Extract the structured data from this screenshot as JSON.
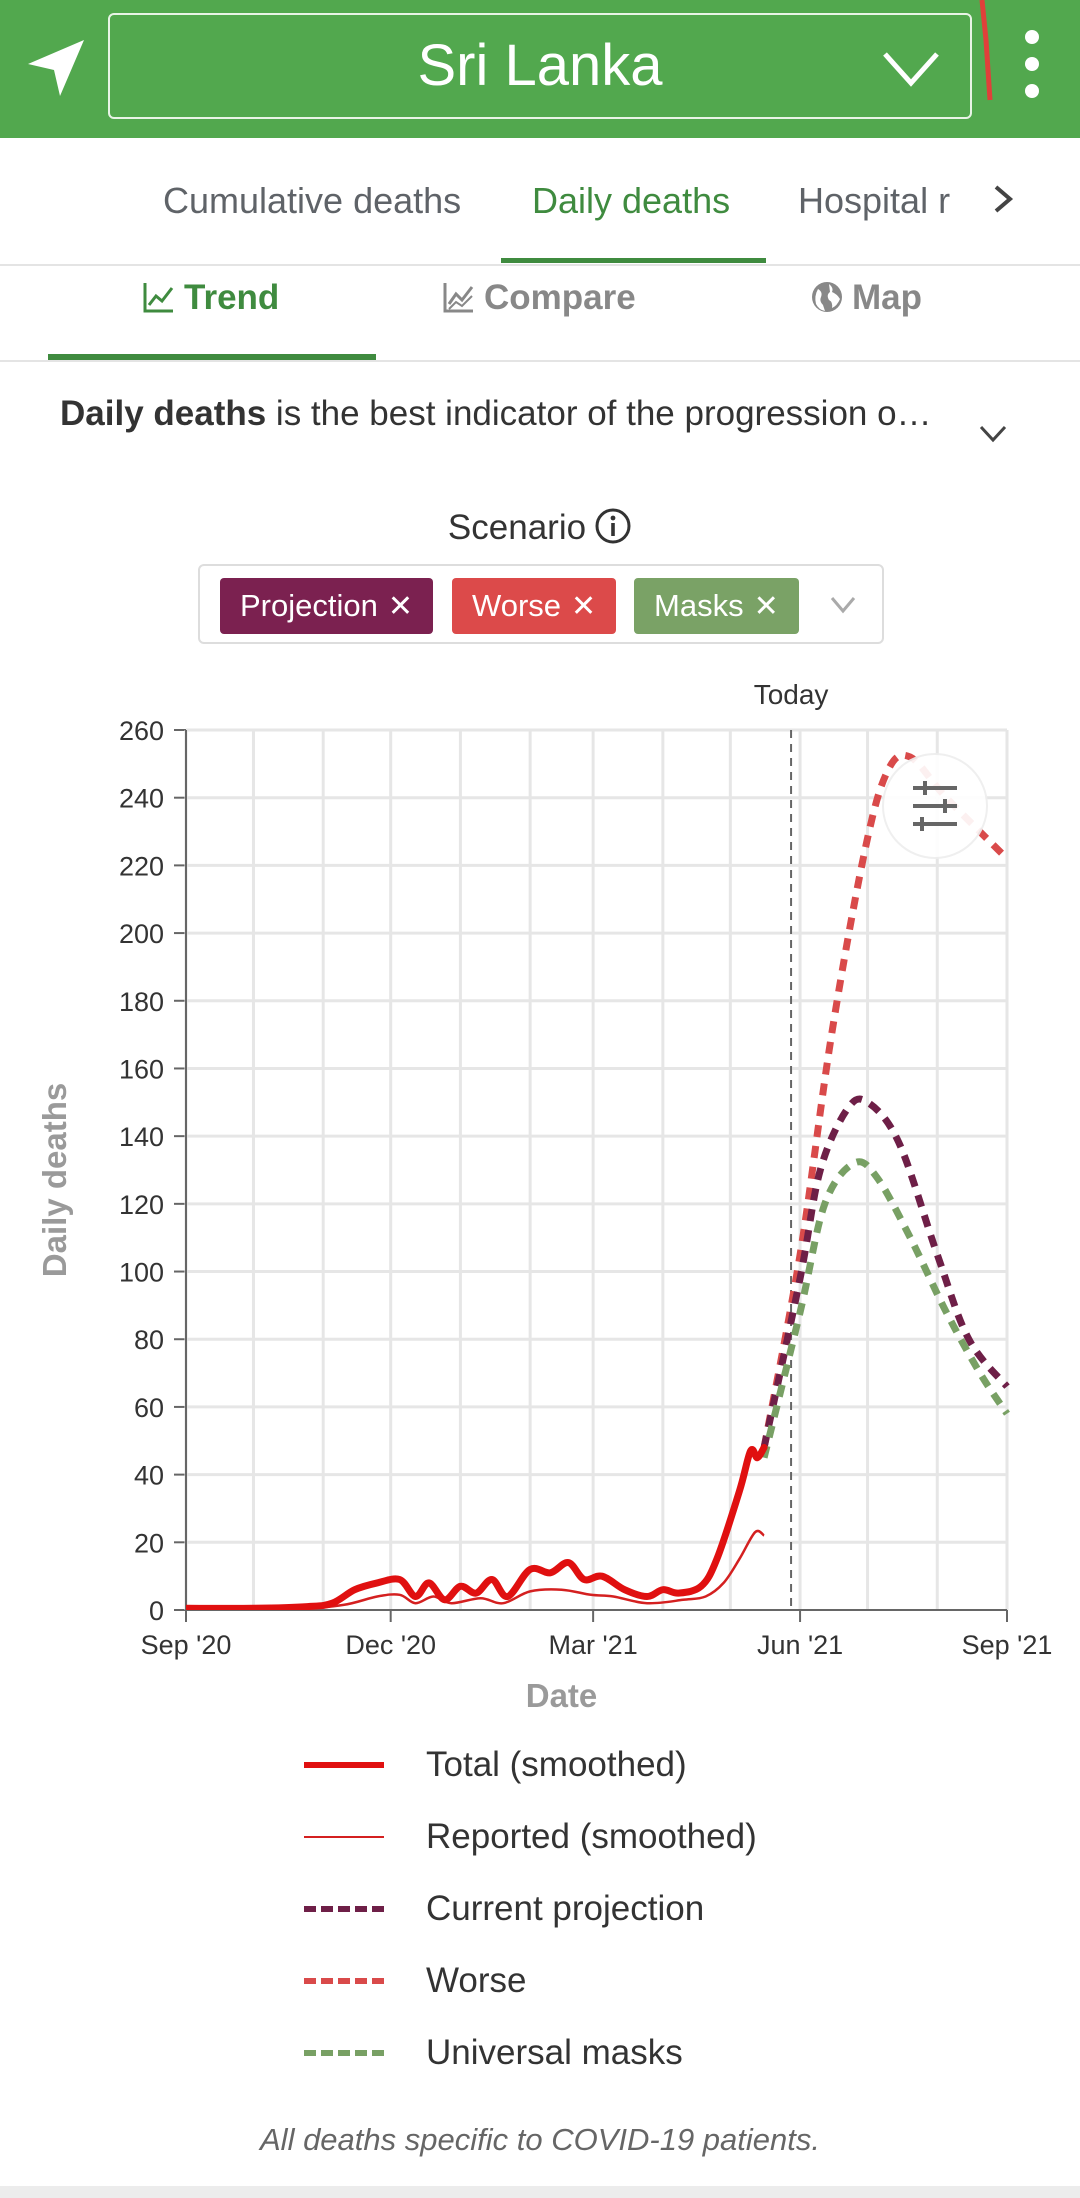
{
  "header": {
    "location": "Sri Lanka",
    "nav_icon": "navigation-arrow-icon",
    "menu_icon": "kebab-menu-icon",
    "dropdown_icon": "chevron-down-icon",
    "accent": "#52a84e"
  },
  "tabs": [
    {
      "label": "Cumulative deaths",
      "active": false
    },
    {
      "label": "Daily deaths",
      "active": true
    },
    {
      "label": "Hospital r",
      "active": false
    }
  ],
  "subtabs": [
    {
      "label": "Trend",
      "icon": "line-chart-icon",
      "active": true
    },
    {
      "label": "Compare",
      "icon": "compare-chart-icon",
      "active": false
    },
    {
      "label": "Map",
      "icon": "globe-icon",
      "active": false
    }
  ],
  "description": {
    "bold": "Daily deaths",
    "rest": " is the best indicator of the progression o…"
  },
  "scenario": {
    "label": "Scenario",
    "chips": [
      {
        "label": "Projection",
        "color": "#7b2150"
      },
      {
        "label": "Worse",
        "color": "#dc4a4a"
      },
      {
        "label": "Masks",
        "color": "#7aa266"
      }
    ]
  },
  "chart_data": {
    "type": "line",
    "today_label": "Today",
    "xlabel": "Date",
    "ylabel": "Daily deaths",
    "ylim": [
      0,
      260
    ],
    "yticks": [
      0,
      20,
      40,
      60,
      80,
      100,
      120,
      140,
      160,
      180,
      200,
      220,
      240,
      260
    ],
    "xlim": [
      "2020-09-01",
      "2021-09-01"
    ],
    "xticks": [
      {
        "date": "2020-09-01",
        "label": "Sep '20"
      },
      {
        "date": "2020-12-01",
        "label": "Dec '20"
      },
      {
        "date": "2021-03-01",
        "label": "Mar '21"
      },
      {
        "date": "2021-06-01",
        "label": "Jun '21"
      },
      {
        "date": "2021-09-01",
        "label": "Sep '21"
      }
    ],
    "today": "2021-05-28",
    "grid": true,
    "series": [
      {
        "name": "Total (smoothed)",
        "color": "#e01010",
        "style": "solid-thick",
        "points": [
          [
            "2020-09-01",
            0.5
          ],
          [
            "2020-10-01",
            0.5
          ],
          [
            "2020-10-25",
            1
          ],
          [
            "2020-11-05",
            2
          ],
          [
            "2020-11-15",
            6
          ],
          [
            "2020-11-25",
            8
          ],
          [
            "2020-12-05",
            9
          ],
          [
            "2020-12-12",
            4
          ],
          [
            "2020-12-18",
            8
          ],
          [
            "2020-12-25",
            3
          ],
          [
            "2021-01-01",
            7
          ],
          [
            "2021-01-08",
            5
          ],
          [
            "2021-01-15",
            9
          ],
          [
            "2021-01-22",
            4
          ],
          [
            "2021-02-01",
            12
          ],
          [
            "2021-02-10",
            11
          ],
          [
            "2021-02-18",
            14
          ],
          [
            "2021-02-25",
            9
          ],
          [
            "2021-03-05",
            10
          ],
          [
            "2021-03-15",
            6
          ],
          [
            "2021-03-25",
            4
          ],
          [
            "2021-04-01",
            6
          ],
          [
            "2021-04-08",
            5
          ],
          [
            "2021-04-18",
            7
          ],
          [
            "2021-04-25",
            15
          ],
          [
            "2021-05-05",
            35
          ],
          [
            "2021-05-10",
            47
          ],
          [
            "2021-05-13",
            45
          ],
          [
            "2021-05-16",
            48
          ]
        ]
      },
      {
        "name": "Reported (smoothed)",
        "color": "#d42020",
        "style": "solid-thin",
        "points": [
          [
            "2020-09-01",
            0.2
          ],
          [
            "2020-10-20",
            0.5
          ],
          [
            "2020-11-10",
            1.5
          ],
          [
            "2020-11-25",
            4
          ],
          [
            "2020-12-05",
            4.5
          ],
          [
            "2020-12-12",
            2
          ],
          [
            "2020-12-20",
            4
          ],
          [
            "2020-12-28",
            2
          ],
          [
            "2021-01-10",
            3.5
          ],
          [
            "2021-01-20",
            2
          ],
          [
            "2021-02-01",
            5.5
          ],
          [
            "2021-02-15",
            6
          ],
          [
            "2021-02-28",
            4.5
          ],
          [
            "2021-03-10",
            4
          ],
          [
            "2021-03-25",
            2
          ],
          [
            "2021-04-10",
            3
          ],
          [
            "2021-04-20",
            4
          ],
          [
            "2021-04-28",
            8
          ],
          [
            "2021-05-05",
            15
          ],
          [
            "2021-05-12",
            23
          ],
          [
            "2021-05-16",
            22
          ]
        ]
      },
      {
        "name": "Current projection",
        "color": "#6e1f47",
        "style": "dashed",
        "points": [
          [
            "2021-05-16",
            48
          ],
          [
            "2021-06-01",
            98
          ],
          [
            "2021-06-10",
            130
          ],
          [
            "2021-06-22",
            148
          ],
          [
            "2021-07-01",
            150
          ],
          [
            "2021-07-15",
            138
          ],
          [
            "2021-08-01",
            105
          ],
          [
            "2021-08-15",
            80
          ],
          [
            "2021-09-01",
            66
          ]
        ]
      },
      {
        "name": "Worse",
        "color": "#d94a4a",
        "style": "dashed",
        "points": [
          [
            "2021-05-16",
            48
          ],
          [
            "2021-06-01",
            105
          ],
          [
            "2021-06-15",
            170
          ],
          [
            "2021-06-30",
            225
          ],
          [
            "2021-07-10",
            248
          ],
          [
            "2021-07-20",
            252
          ],
          [
            "2021-08-05",
            240
          ],
          [
            "2021-09-01",
            222
          ]
        ]
      },
      {
        "name": "Universal masks",
        "color": "#78a064",
        "style": "dashed",
        "points": [
          [
            "2021-05-16",
            45
          ],
          [
            "2021-06-01",
            88
          ],
          [
            "2021-06-12",
            120
          ],
          [
            "2021-06-25",
            132
          ],
          [
            "2021-07-05",
            128
          ],
          [
            "2021-07-20",
            110
          ],
          [
            "2021-08-05",
            88
          ],
          [
            "2021-08-20",
            70
          ],
          [
            "2021-09-01",
            58
          ]
        ]
      }
    ]
  },
  "settings_icon": "sliders-icon",
  "footnote": "All deaths specific to COVID-19 patients."
}
